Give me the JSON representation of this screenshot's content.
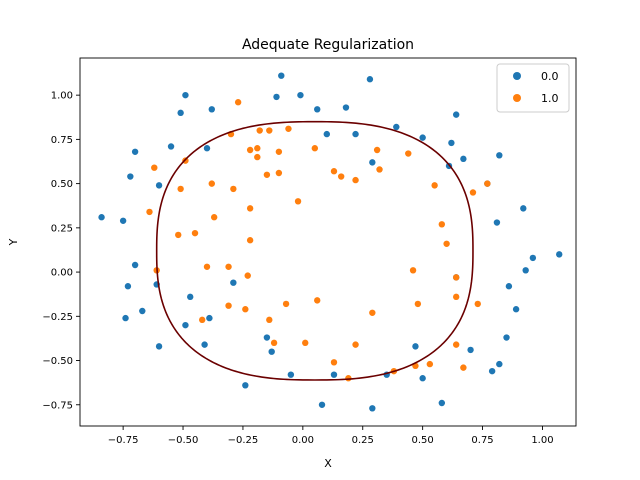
{
  "chart_data": {
    "type": "scatter",
    "title": "Adequate Regularization",
    "xlabel": "X",
    "ylabel": "Y",
    "xlim": [
      -0.93,
      1.14
    ],
    "ylim": [
      -0.87,
      1.21
    ],
    "x_ticks": [
      -0.75,
      -0.5,
      -0.25,
      0.0,
      0.25,
      0.5,
      0.75,
      1.0
    ],
    "x_tick_labels": [
      "−0.75",
      "−0.50",
      "−0.25",
      "0.00",
      "0.25",
      "0.50",
      "0.75",
      "1.00"
    ],
    "y_ticks": [
      -0.75,
      -0.5,
      -0.25,
      0.0,
      0.25,
      0.5,
      0.75,
      1.0
    ],
    "y_tick_labels": [
      "−0.75",
      "−0.50",
      "−0.25",
      "0.00",
      "0.25",
      "0.50",
      "0.75",
      "1.00"
    ],
    "grid": false,
    "legend_position": "top-right",
    "series": [
      {
        "name": "0.0",
        "color": "#1f77b4",
        "points": [
          [
            -0.84,
            0.31
          ],
          [
            -0.75,
            0.29
          ],
          [
            -0.7,
            0.68
          ],
          [
            -0.72,
            0.54
          ],
          [
            -0.7,
            0.04
          ],
          [
            -0.73,
            -0.08
          ],
          [
            -0.74,
            -0.26
          ],
          [
            -0.67,
            -0.22
          ],
          [
            -0.61,
            -0.07
          ],
          [
            -0.6,
            0.49
          ],
          [
            -0.55,
            0.71
          ],
          [
            -0.6,
            -0.42
          ],
          [
            -0.51,
            0.9
          ],
          [
            -0.49,
            1.0
          ],
          [
            -0.49,
            -0.3
          ],
          [
            -0.47,
            -0.14
          ],
          [
            -0.4,
            0.7
          ],
          [
            -0.38,
            0.92
          ],
          [
            -0.41,
            -0.41
          ],
          [
            -0.39,
            -0.26
          ],
          [
            -0.29,
            -0.06
          ],
          [
            -0.24,
            -0.64
          ],
          [
            -0.15,
            -0.37
          ],
          [
            -0.13,
            -0.45
          ],
          [
            -0.11,
            0.99
          ],
          [
            -0.09,
            1.11
          ],
          [
            -0.05,
            -0.58
          ],
          [
            -0.01,
            1.0
          ],
          [
            0.06,
            0.92
          ],
          [
            0.08,
            -0.75
          ],
          [
            0.1,
            0.78
          ],
          [
            0.13,
            -0.58
          ],
          [
            0.18,
            0.93
          ],
          [
            0.22,
            0.78
          ],
          [
            0.28,
            1.09
          ],
          [
            0.29,
            0.62
          ],
          [
            0.29,
            -0.77
          ],
          [
            0.35,
            -0.58
          ],
          [
            0.39,
            0.82
          ],
          [
            0.47,
            -0.42
          ],
          [
            0.5,
            0.76
          ],
          [
            0.5,
            -0.6
          ],
          [
            0.58,
            -0.74
          ],
          [
            0.61,
            0.6
          ],
          [
            0.62,
            0.73
          ],
          [
            0.64,
            0.89
          ],
          [
            0.64,
            -0.03
          ],
          [
            0.67,
            0.64
          ],
          [
            0.7,
            -0.44
          ],
          [
            0.77,
            0.5
          ],
          [
            0.81,
            0.28
          ],
          [
            0.82,
            0.66
          ],
          [
            0.82,
            -0.52
          ],
          [
            0.79,
            -0.56
          ],
          [
            0.86,
            -0.08
          ],
          [
            0.85,
            -0.37
          ],
          [
            0.89,
            -0.21
          ],
          [
            0.92,
            0.36
          ],
          [
            0.93,
            0.01
          ],
          [
            0.96,
            0.08
          ],
          [
            1.07,
            0.1
          ]
        ]
      },
      {
        "name": "1.0",
        "color": "#ff7f0e",
        "points": [
          [
            -0.64,
            0.34
          ],
          [
            -0.62,
            0.59
          ],
          [
            -0.61,
            0.01
          ],
          [
            -0.52,
            0.21
          ],
          [
            -0.51,
            0.47
          ],
          [
            -0.49,
            0.63
          ],
          [
            -0.45,
            0.22
          ],
          [
            -0.42,
            -0.27
          ],
          [
            -0.4,
            0.03
          ],
          [
            -0.38,
            0.5
          ],
          [
            -0.37,
            0.31
          ],
          [
            -0.31,
            0.03
          ],
          [
            -0.31,
            -0.19
          ],
          [
            -0.3,
            0.78
          ],
          [
            -0.29,
            0.47
          ],
          [
            -0.27,
            0.96
          ],
          [
            -0.24,
            -0.21
          ],
          [
            -0.23,
            -0.02
          ],
          [
            -0.22,
            0.69
          ],
          [
            -0.22,
            0.36
          ],
          [
            -0.22,
            0.18
          ],
          [
            -0.19,
            0.7
          ],
          [
            -0.19,
            0.65
          ],
          [
            -0.18,
            0.8
          ],
          [
            -0.15,
            0.55
          ],
          [
            -0.14,
            0.8
          ],
          [
            -0.14,
            -0.27
          ],
          [
            -0.12,
            -0.4
          ],
          [
            -0.1,
            0.68
          ],
          [
            -0.1,
            0.56
          ],
          [
            -0.07,
            -0.18
          ],
          [
            -0.06,
            0.81
          ],
          [
            -0.02,
            0.4
          ],
          [
            0.01,
            -0.4
          ],
          [
            0.05,
            0.7
          ],
          [
            0.06,
            -0.16
          ],
          [
            0.13,
            -0.51
          ],
          [
            0.13,
            0.57
          ],
          [
            0.16,
            0.54
          ],
          [
            0.19,
            -0.6
          ],
          [
            0.22,
            0.52
          ],
          [
            0.22,
            -0.41
          ],
          [
            0.29,
            -0.23
          ],
          [
            0.31,
            0.69
          ],
          [
            0.32,
            0.58
          ],
          [
            0.38,
            -0.56
          ],
          [
            0.44,
            0.67
          ],
          [
            0.46,
            0.01
          ],
          [
            0.47,
            -0.53
          ],
          [
            0.48,
            -0.18
          ],
          [
            0.53,
            -0.52
          ],
          [
            0.55,
            0.49
          ],
          [
            0.58,
            0.27
          ],
          [
            0.6,
            0.16
          ],
          [
            0.64,
            -0.03
          ],
          [
            0.64,
            -0.14
          ],
          [
            0.64,
            -0.41
          ],
          [
            0.67,
            -0.54
          ],
          [
            0.71,
            0.45
          ],
          [
            0.73,
            -0.18
          ],
          [
            0.77,
            0.5
          ]
        ]
      }
    ],
    "decision_boundary": {
      "color": "#6b0000",
      "center": [
        0.05,
        0.12
      ],
      "radius_x": 0.66,
      "radius_y": 0.73,
      "exponent": 2.6,
      "rotation_deg": 0
    }
  }
}
